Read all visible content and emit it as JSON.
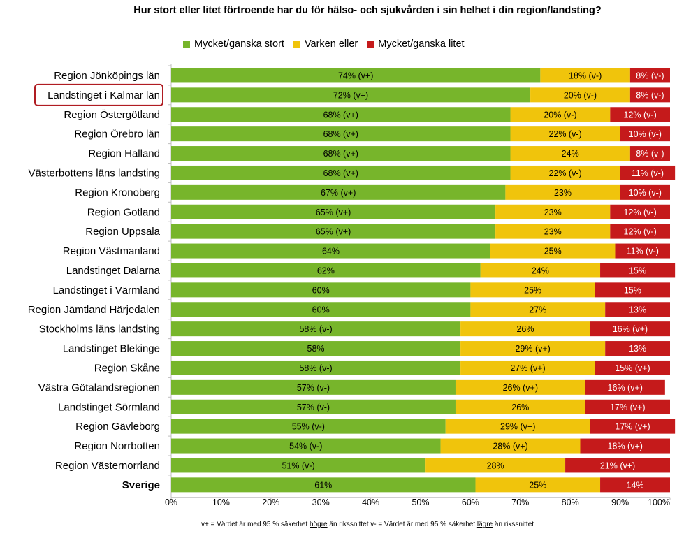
{
  "chart_data": {
    "type": "bar",
    "orientation": "horizontal",
    "stacked": true,
    "title": "Hur stort eller litet förtroende har du för hälso- och sjukvården i sin helhet i din region/landsting?",
    "legend_position": "top",
    "xlim": [
      0,
      100
    ],
    "x_ticks": [
      "0%",
      "10%",
      "20%",
      "30%",
      "40%",
      "50%",
      "60%",
      "70%",
      "80%",
      "90%",
      "100%"
    ],
    "highlighted_category": "Landstinget i Kalmar län",
    "categories": [
      "Region Jönköpings län",
      "Landstinget i Kalmar län",
      "Region Östergötland",
      "Region Örebro län",
      "Region Halland",
      "Västerbottens läns landsting",
      "Region Kronoberg",
      "Region Gotland",
      "Region Uppsala",
      "Region Västmanland",
      "Landstinget Dalarna",
      "Landstinget i Värmland",
      "Region Jämtland Härjedalen",
      "Stockholms läns landsting",
      "Landstinget Blekinge",
      "Region Skåne",
      "Västra Götalandsregionen",
      "Landstinget Sörmland",
      "Region Gävleborg",
      "Region Norrbotten",
      "Region Västernorrland",
      "Sverige"
    ],
    "series": [
      {
        "name": "Mycket/ganska stort",
        "color": "#77b52b",
        "values": [
          74,
          72,
          68,
          68,
          68,
          68,
          67,
          65,
          65,
          64,
          62,
          60,
          60,
          58,
          58,
          58,
          57,
          57,
          55,
          54,
          51,
          61
        ],
        "labels": [
          "74% (v+)",
          "72% (v+)",
          "68% (v+)",
          "68% (v+)",
          "68% (v+)",
          "68% (v+)",
          "67% (v+)",
          "65% (v+)",
          "65% (v+)",
          "64%",
          "62%",
          "60%",
          "60%",
          "58% (v-)",
          "58%",
          "58% (v-)",
          "57% (v-)",
          "57% (v-)",
          "55% (v-)",
          "54% (v-)",
          "51% (v-)",
          "61%"
        ]
      },
      {
        "name": "Varken eller",
        "color": "#f0c40c",
        "values": [
          18,
          20,
          20,
          22,
          24,
          22,
          23,
          23,
          23,
          25,
          24,
          25,
          27,
          26,
          29,
          27,
          26,
          26,
          29,
          28,
          28,
          25
        ],
        "labels": [
          "18% (v-)",
          "20% (v-)",
          "20% (v-)",
          "22% (v-)",
          "24%",
          "22% (v-)",
          "23%",
          "23%",
          "23%",
          "25%",
          "24%",
          "25%",
          "27%",
          "26%",
          "29% (v+)",
          "27% (v+)",
          "26% (v+)",
          "26%",
          "29% (v+)",
          "28% (v+)",
          "28%",
          "25%"
        ]
      },
      {
        "name": "Mycket/ganska litet",
        "color": "#c51a1b",
        "values": [
          8,
          8,
          12,
          10,
          8,
          11,
          10,
          12,
          12,
          11,
          15,
          15,
          13,
          16,
          13,
          15,
          16,
          17,
          17,
          18,
          21,
          14
        ],
        "labels": [
          "8% (v-)",
          "8% (v-)",
          "12% (v-)",
          "10% (v-)",
          "8% (v-)",
          "11% (v-)",
          "10% (v-)",
          "12% (v-)",
          "12% (v-)",
          "11% (v-)",
          "15%",
          "15%",
          "13%",
          "16% (v+)",
          "13%",
          "15% (v+)",
          "16% (v+)",
          "17% (v+)",
          "17% (v+)",
          "18% (v+)",
          "21% (v+)",
          "14%"
        ]
      }
    ]
  },
  "footnote": {
    "part1": "v+ = Värdet är med 95 % säkerhet ",
    "word1": "högre",
    "part2": " än rikssnittet v-  = Värdet är med 95 % säkerhet ",
    "word2": "lägre",
    "part3": " än rikssnittet"
  }
}
